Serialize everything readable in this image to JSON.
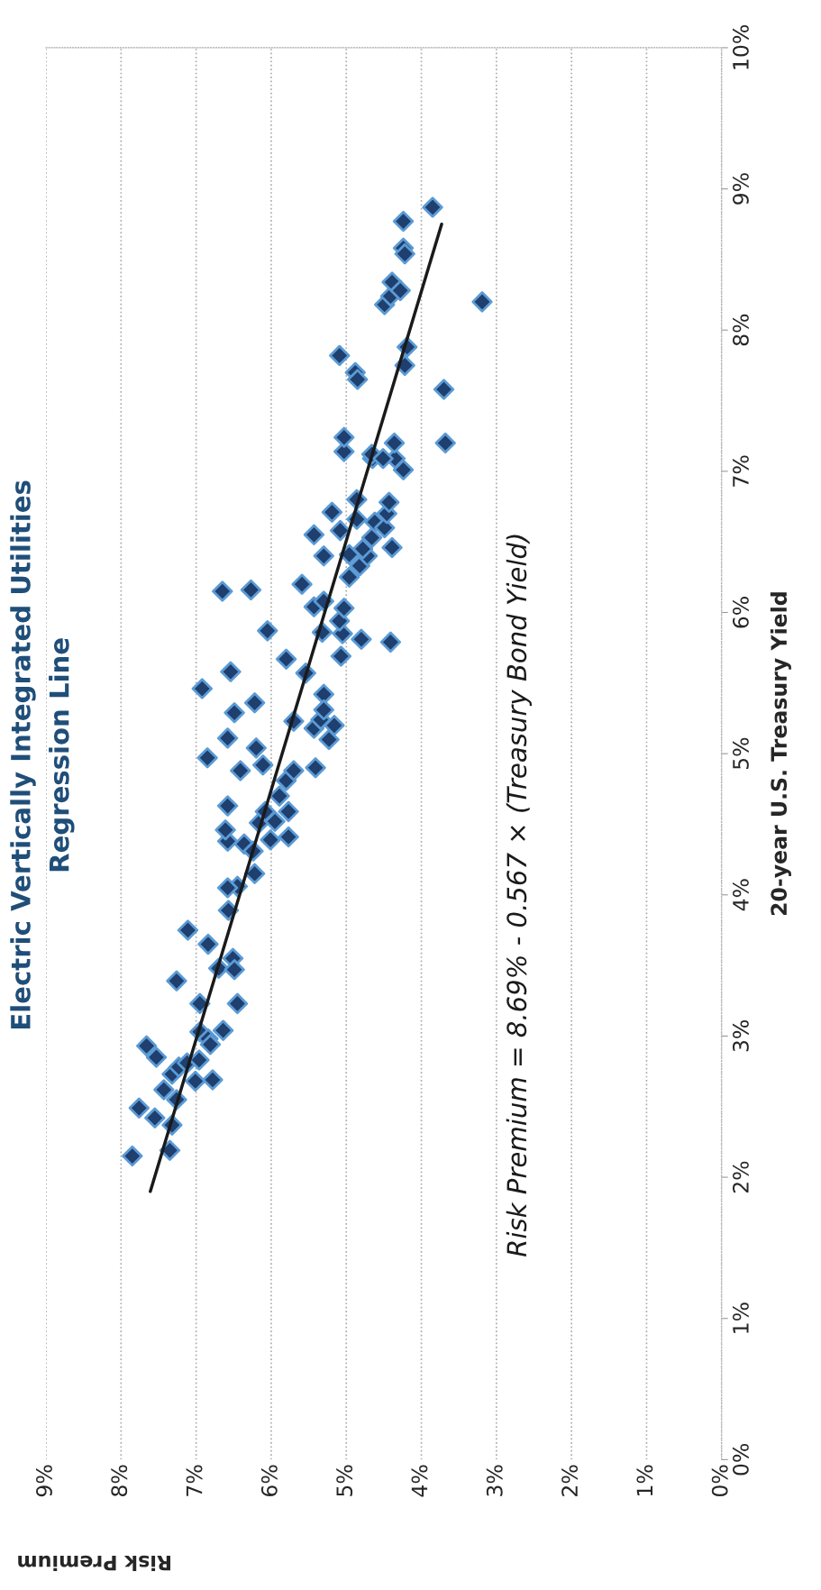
{
  "chart_data": {
    "type": "scatter",
    "title": "Electric Vertically Integrated Utilities",
    "subtitle": "Regression Line",
    "xlabel": "Risk Premium",
    "ylabel": "20-year U.S. Treasury Yield",
    "annotations": [
      "Risk Premium = 8.69% - 0.567 × (Treasury Bond Yield)"
    ],
    "xlim": [
      9,
      0
    ],
    "xticks": [
      {
        "value": 0,
        "label": "0%"
      },
      {
        "value": 1,
        "label": "1%"
      },
      {
        "value": 2,
        "label": "2%"
      },
      {
        "value": 3,
        "label": "3%"
      },
      {
        "value": 4,
        "label": "4%"
      },
      {
        "value": 5,
        "label": "5%"
      },
      {
        "value": 6,
        "label": "6%"
      },
      {
        "value": 7,
        "label": "7%"
      },
      {
        "value": 8,
        "label": "8%"
      },
      {
        "value": 9,
        "label": "9%"
      }
    ],
    "ylim": [
      0,
      10
    ],
    "yticks": [
      {
        "value": 0,
        "label": "0%"
      },
      {
        "value": 1,
        "label": "1%"
      },
      {
        "value": 2,
        "label": "2%"
      },
      {
        "value": 3,
        "label": "3%"
      },
      {
        "value": 4,
        "label": "4%"
      },
      {
        "value": 5,
        "label": "5%"
      },
      {
        "value": 6,
        "label": "6%"
      },
      {
        "value": 7,
        "label": "7%"
      },
      {
        "value": 8,
        "label": "8%"
      },
      {
        "value": 9,
        "label": "9%"
      },
      {
        "value": 10,
        "label": "10%"
      }
    ],
    "grid": "x",
    "marker": "diamond",
    "legend": false,
    "series": [
      {
        "color": "#1f3f6e",
        "values": [
          2.15,
          2.49,
          2.93,
          2.85,
          2.42,
          2.19,
          2.37,
          2.62,
          2.73,
          2.78,
          2.55,
          2.81,
          2.68,
          2.83,
          2.69,
          3.03,
          3.23,
          2.98,
          2.94,
          3.04,
          3.39,
          3.75,
          3.65,
          3.48,
          3.55,
          3.47,
          3.23,
          3.89,
          4.06,
          4.05,
          4.15,
          4.36,
          4.31,
          4.38,
          4.46,
          4.63,
          4.51,
          4.39,
          4.59,
          4.52,
          4.7,
          4.81,
          4.88,
          4.41,
          4.59,
          4.92,
          4.88,
          4.97,
          5.11,
          5.04,
          5.29,
          5.36,
          5.46,
          5.58,
          5.87,
          6.16,
          6.15,
          5.67,
          5.23,
          5.57,
          5.18,
          5.1,
          5.42,
          5.24,
          5.31,
          4.9,
          5.2,
          5.69,
          5.86,
          5.85,
          6.04,
          6.08,
          6.2,
          5.94,
          6.03,
          6.4,
          6.25,
          6.55,
          6.66,
          6.58,
          6.71,
          6.41,
          6.33,
          6.4,
          6.45,
          6.8,
          6.53,
          6.64,
          6.6,
          6.7,
          6.46,
          6.78,
          7.01,
          7.09,
          7.2,
          7.09,
          7.14,
          7.24,
          7.12,
          7.09,
          7.2,
          7.58,
          7.7,
          7.65,
          7.82,
          7.75,
          7.88,
          8.18,
          8.24,
          8.34,
          8.28,
          8.58,
          8.54,
          8.77,
          8.87,
          8.2,
          5.81,
          5.79
        ],
        "x": [
          7.85,
          7.76,
          7.66,
          7.53,
          7.55,
          7.35,
          7.32,
          7.43,
          7.32,
          7.23,
          7.26,
          7.12,
          7.01,
          6.96,
          6.78,
          6.95,
          6.95,
          6.84,
          6.81,
          6.64,
          7.26,
          7.11,
          6.84,
          6.7,
          6.51,
          6.49,
          6.45,
          6.57,
          6.45,
          6.58,
          6.22,
          6.36,
          6.24,
          6.58,
          6.61,
          6.58,
          6.16,
          6.01,
          6.08,
          5.95,
          5.89,
          5.8,
          5.7,
          5.77,
          5.77,
          6.11,
          6.41,
          6.85,
          6.58,
          6.2,
          6.49,
          6.22,
          6.92,
          6.54,
          6.05,
          6.27,
          6.65,
          5.8,
          5.7,
          5.54,
          5.43,
          5.23,
          5.3,
          5.34,
          5.3,
          5.41,
          5.16,
          5.07,
          5.32,
          5.05,
          5.43,
          5.3,
          5.59,
          5.09,
          5.03,
          5.3,
          4.96,
          5.43,
          4.86,
          5.08,
          5.19,
          4.96,
          4.82,
          4.72,
          4.78,
          4.86,
          4.66,
          4.62,
          4.49,
          4.46,
          4.39,
          4.43,
          4.24,
          4.35,
          4.36,
          4.65,
          5.03,
          5.03,
          4.66,
          4.51,
          3.68,
          3.7,
          4.88,
          4.85,
          5.09,
          4.22,
          4.19,
          4.49,
          4.41,
          4.39,
          4.28,
          4.24,
          4.22,
          4.24,
          3.85,
          3.19,
          4.8,
          4.41
        ]
      },
      {
        "type": "line",
        "marker": "none",
        "color": "#1a1a1a",
        "x": [
          7.61,
          3.73
        ],
        "values": [
          1.9,
          8.75
        ]
      }
    ]
  }
}
